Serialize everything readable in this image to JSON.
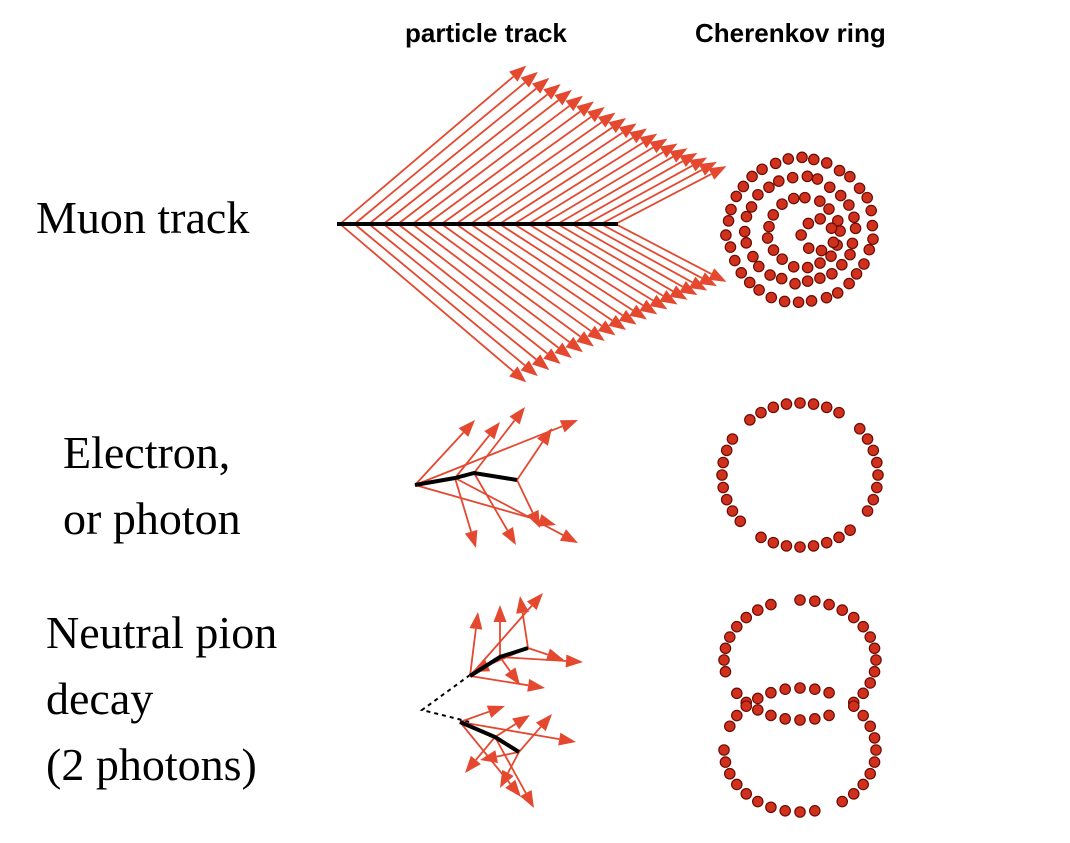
{
  "columns": {
    "track": "particle track",
    "ring": "Cherenkov ring"
  },
  "rows": [
    {
      "id": "muon",
      "label_lines": [
        "Muon track"
      ]
    },
    {
      "id": "electron",
      "label_lines": [
        "Electron,",
        "or photon"
      ]
    },
    {
      "id": "pion",
      "label_lines": [
        "Neutral pion",
        "decay",
        "(2 photons)"
      ]
    }
  ],
  "colors": {
    "photon_arrow": "#e4482f",
    "hit_fill": "#d0301c",
    "hit_stroke": "#6a0d05",
    "track_line": "#000000"
  }
}
